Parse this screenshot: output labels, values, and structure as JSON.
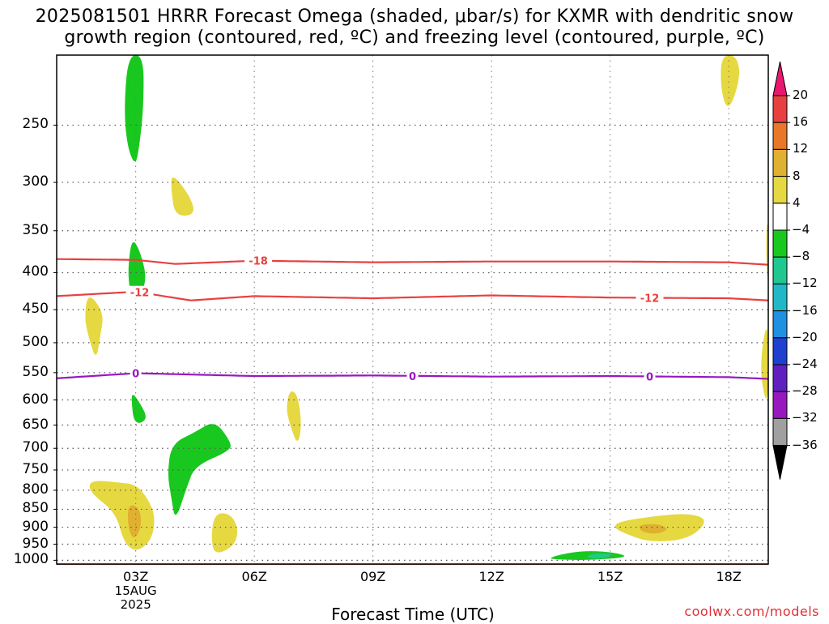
{
  "header": {
    "title_line1": "2025081501 HRRR Forecast Omega (shaded, μbar/s) for KXMR with dendritic snow",
    "title_line2": "growth region (contoured, red, ºC) and freezing level (contoured, purple, ºC)"
  },
  "footer": {
    "xaxis_title": "Forecast Time (UTC)",
    "credit": "coolwx.com/models"
  },
  "chart_data": {
    "type": "time-height",
    "title": "2025081501 HRRR Forecast Omega (shaded, μbar/s) for KXMR with dendritic snow growth region (contoured, red, ºC) and freezing level (contoured, purple, ºC)",
    "xlabel": "Forecast Time (UTC)",
    "ylabel": "",
    "x_ticks": [
      {
        "hour": 3,
        "label": "03Z",
        "sub1": "15AUG",
        "sub2": "2025"
      },
      {
        "hour": 6,
        "label": "06Z",
        "sub1": "",
        "sub2": ""
      },
      {
        "hour": 9,
        "label": "09Z",
        "sub1": "",
        "sub2": ""
      },
      {
        "hour": 12,
        "label": "12Z",
        "sub1": "",
        "sub2": ""
      },
      {
        "hour": 15,
        "label": "15Z",
        "sub1": "",
        "sub2": ""
      },
      {
        "hour": 18,
        "label": "18Z",
        "sub1": "",
        "sub2": ""
      }
    ],
    "xlim": [
      1,
      19
    ],
    "y_ticks": [
      250,
      300,
      350,
      400,
      450,
      500,
      550,
      600,
      650,
      700,
      750,
      800,
      850,
      900,
      950,
      1000
    ],
    "ylim": [
      1012,
      200
    ],
    "y_scale": "log-pressure",
    "grid": true,
    "colorbar": {
      "levels": [
        20,
        16,
        12,
        8,
        4,
        -4,
        -8,
        -12,
        -16,
        -20,
        -24,
        -28,
        -32,
        -36
      ],
      "colors": [
        "#e8186e",
        "#e84040",
        "#e87828",
        "#e0b030",
        "#e6d840",
        "#ffffff",
        "#19c81e",
        "#20c890",
        "#20b8c8",
        "#2090e0",
        "#2040d0",
        "#6020c0",
        "#9818c0",
        "#a0a0a0",
        "#000000"
      ]
    },
    "contours": [
      {
        "name": "-18",
        "color": "#e84040",
        "points": [
          [
            1,
            383
          ],
          [
            3,
            384
          ],
          [
            4,
            389
          ],
          [
            6,
            385
          ],
          [
            9,
            387
          ],
          [
            12,
            386
          ],
          [
            15,
            386
          ],
          [
            18,
            387
          ],
          [
            19,
            390
          ]
        ],
        "labels": [
          {
            "hour": 6.1,
            "text": "-18"
          }
        ]
      },
      {
        "name": "-12",
        "color": "#e84040",
        "points": [
          [
            1,
            431
          ],
          [
            3,
            425
          ],
          [
            4.4,
            437
          ],
          [
            6,
            431
          ],
          [
            9,
            434
          ],
          [
            12,
            430
          ],
          [
            15,
            433
          ],
          [
            18,
            434
          ],
          [
            19,
            437
          ]
        ],
        "labels": [
          {
            "hour": 3.1,
            "text": "-12"
          },
          {
            "hour": 16.0,
            "text": "-12"
          }
        ]
      },
      {
        "name": "0",
        "color": "#9818c0",
        "points": [
          [
            1,
            560
          ],
          [
            3,
            551
          ],
          [
            6,
            556
          ],
          [
            9,
            555
          ],
          [
            12,
            557
          ],
          [
            15,
            556
          ],
          [
            18,
            558
          ],
          [
            19,
            561
          ]
        ],
        "labels": [
          {
            "hour": 3.0,
            "text": "0"
          },
          {
            "hour": 10.0,
            "text": "0"
          },
          {
            "hour": 16.0,
            "text": "0"
          }
        ]
      }
    ],
    "omega_regions": [
      {
        "value": -6,
        "color": "#19c81e",
        "points": [
          [
            2.8,
            200
          ],
          [
            3.2,
            200
          ],
          [
            3.2,
            235
          ],
          [
            3.1,
            265
          ],
          [
            3.0,
            285
          ],
          [
            2.8,
            270
          ],
          [
            2.7,
            240
          ]
        ]
      },
      {
        "value": -6,
        "color": "#19c81e",
        "points": [
          [
            2.9,
            358
          ],
          [
            3.1,
            372
          ],
          [
            3.3,
            410
          ],
          [
            3.0,
            440
          ],
          [
            2.85,
            425
          ],
          [
            2.8,
            395
          ]
        ]
      },
      {
        "value": -6,
        "color": "#19c81e",
        "points": [
          [
            2.9,
            585
          ],
          [
            3.1,
            605
          ],
          [
            3.3,
            635
          ],
          [
            3.1,
            648
          ],
          [
            2.95,
            640
          ],
          [
            2.9,
            610
          ]
        ]
      },
      {
        "value": -6,
        "color": "#19c81e",
        "points": [
          [
            3.9,
            690
          ],
          [
            4.5,
            665
          ],
          [
            5.0,
            640
          ],
          [
            5.4,
            685
          ],
          [
            5.4,
            705
          ],
          [
            4.5,
            740
          ],
          [
            4.3,
            790
          ],
          [
            4.0,
            885
          ],
          [
            3.9,
            820
          ],
          [
            3.8,
            760
          ]
        ]
      },
      {
        "value": -6,
        "color": "#19c81e",
        "points": [
          [
            13.5,
            990
          ],
          [
            14.0,
            975
          ],
          [
            14.5,
            970
          ],
          [
            15.1,
            975
          ],
          [
            15.5,
            990
          ],
          [
            14.5,
            1000
          ],
          [
            13.5,
            997
          ]
        ]
      },
      {
        "value": -10,
        "color": "#20c890",
        "points": [
          [
            14.4,
            985
          ],
          [
            14.7,
            978
          ],
          [
            15.1,
            980
          ],
          [
            14.9,
            993
          ],
          [
            14.5,
            995
          ]
        ]
      },
      {
        "value": 5,
        "color": "#e6d840",
        "points": [
          [
            3.9,
            290
          ],
          [
            4.4,
            315
          ],
          [
            4.5,
            333
          ],
          [
            4.0,
            334
          ],
          [
            3.9,
            310
          ]
        ]
      },
      {
        "value": 5,
        "color": "#e6d840",
        "points": [
          [
            1.8,
            425
          ],
          [
            2.2,
            455
          ],
          [
            2.1,
            490
          ],
          [
            2.0,
            530
          ],
          [
            1.8,
            490
          ],
          [
            1.7,
            460
          ]
        ]
      },
      {
        "value": 5,
        "color": "#e6d840",
        "points": [
          [
            2.0,
            775
          ],
          [
            2.5,
            780
          ],
          [
            3.0,
            785
          ],
          [
            3.3,
            820
          ],
          [
            3.5,
            870
          ],
          [
            3.4,
            940
          ],
          [
            3.0,
            975
          ],
          [
            2.7,
            945
          ],
          [
            2.5,
            860
          ],
          [
            1.9,
            810
          ],
          [
            1.8,
            785
          ]
        ]
      },
      {
        "value": 5,
        "color": "#e6d840",
        "points": [
          [
            5.0,
            860
          ],
          [
            5.4,
            862
          ],
          [
            5.6,
            905
          ],
          [
            5.5,
            955
          ],
          [
            5.0,
            985
          ],
          [
            4.9,
            930
          ]
        ]
      },
      {
        "value": 5,
        "color": "#e6d840",
        "points": [
          [
            6.9,
            580
          ],
          [
            7.1,
            590
          ],
          [
            7.2,
            650
          ],
          [
            7.1,
            695
          ],
          [
            6.9,
            650
          ],
          [
            6.8,
            615
          ]
        ]
      },
      {
        "value": 5,
        "color": "#e6d840",
        "points": [
          [
            15.2,
            885
          ],
          [
            16.0,
            870
          ],
          [
            17.0,
            860
          ],
          [
            17.5,
            880
          ],
          [
            17.0,
            935
          ],
          [
            16.0,
            945
          ],
          [
            15.3,
            915
          ],
          [
            15.1,
            900
          ]
        ]
      },
      {
        "value": 5,
        "color": "#e6d840",
        "points": [
          [
            17.8,
            200
          ],
          [
            18.2,
            200
          ],
          [
            18.3,
            215
          ],
          [
            18.0,
            240
          ],
          [
            17.8,
            225
          ]
        ]
      },
      {
        "value": 5,
        "color": "#e6d840",
        "points": [
          [
            18.95,
            345
          ],
          [
            19.0,
            340
          ],
          [
            19.0,
            420
          ],
          [
            18.95,
            390
          ]
        ]
      },
      {
        "value": 5,
        "color": "#e6d840",
        "points": [
          [
            19.0,
            465
          ],
          [
            19.0,
            620
          ],
          [
            18.8,
            560
          ],
          [
            18.85,
            500
          ]
        ]
      },
      {
        "value": 9,
        "color": "#e0b030",
        "points": [
          [
            2.8,
            835
          ],
          [
            3.1,
            845
          ],
          [
            3.15,
            900
          ],
          [
            2.95,
            940
          ],
          [
            2.8,
            900
          ]
        ]
      },
      {
        "value": 9,
        "color": "#e0b030",
        "points": [
          [
            15.7,
            893
          ],
          [
            16.2,
            890
          ],
          [
            16.5,
            905
          ],
          [
            16.2,
            920
          ],
          [
            15.8,
            915
          ]
        ]
      }
    ],
    "surface_band": {
      "color": "#a05028",
      "from_hpa": 1012,
      "to_hpa": 1040
    }
  }
}
